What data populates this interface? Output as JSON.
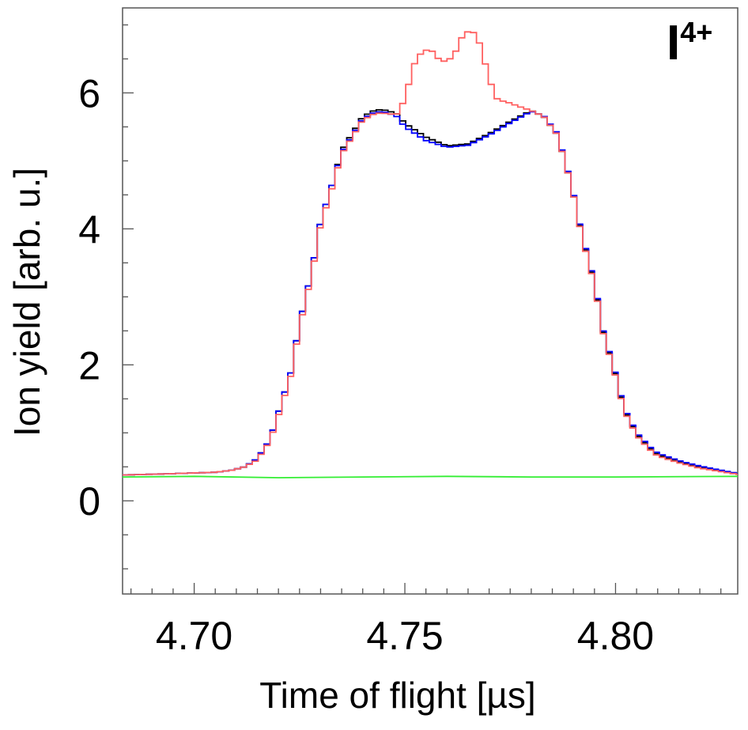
{
  "chart_data": {
    "type": "line",
    "xlabel": "Time of flight [µs]",
    "ylabel": "Ion yield [arb. u.]",
    "xlim": [
      4.683,
      4.829
    ],
    "ylim": [
      -1.37,
      7.25
    ],
    "x_ticks": [
      4.7,
      4.75,
      4.8
    ],
    "x_tick_labels": [
      "4.70",
      "4.75",
      "4.80"
    ],
    "y_ticks": [
      0,
      2,
      4,
      6
    ],
    "y_tick_labels": [
      "0",
      "2",
      "4",
      "6"
    ],
    "grid": false,
    "annotation": {
      "base": "I",
      "superscript": "4+"
    },
    "series": [
      {
        "color": "#000000",
        "style": "step",
        "x": [
          4.683,
          4.695,
          4.705,
          4.709,
          4.712,
          4.715,
          4.718,
          4.72,
          4.723,
          4.725,
          4.728,
          4.73,
          4.733,
          4.735,
          4.738,
          4.74,
          4.743,
          4.745,
          4.748,
          4.75,
          4.755,
          4.76,
          4.765,
          4.77,
          4.775,
          4.78,
          4.783,
          4.786,
          4.788,
          4.79,
          4.792,
          4.795,
          4.797,
          4.8,
          4.802,
          4.805,
          4.808,
          4.81,
          4.815,
          4.82,
          4.829
        ],
        "y": [
          0.38,
          0.4,
          0.42,
          0.45,
          0.5,
          0.62,
          0.9,
          1.3,
          1.9,
          2.6,
          3.4,
          4.1,
          4.7,
          5.15,
          5.45,
          5.65,
          5.75,
          5.75,
          5.7,
          5.55,
          5.35,
          5.22,
          5.25,
          5.4,
          5.58,
          5.74,
          5.65,
          5.4,
          5.0,
          4.5,
          3.9,
          3.2,
          2.5,
          1.85,
          1.35,
          0.98,
          0.78,
          0.68,
          0.58,
          0.5,
          0.4
        ]
      },
      {
        "color": "#0000ff",
        "style": "step",
        "x": [
          4.683,
          4.695,
          4.705,
          4.709,
          4.712,
          4.715,
          4.718,
          4.72,
          4.723,
          4.725,
          4.728,
          4.73,
          4.733,
          4.735,
          4.738,
          4.74,
          4.743,
          4.745,
          4.748,
          4.75,
          4.755,
          4.76,
          4.765,
          4.77,
          4.775,
          4.78,
          4.783,
          4.786,
          4.788,
          4.79,
          4.792,
          4.795,
          4.797,
          4.8,
          4.802,
          4.805,
          4.808,
          4.81,
          4.815,
          4.82,
          4.829
        ],
        "y": [
          0.38,
          0.4,
          0.42,
          0.45,
          0.5,
          0.62,
          0.9,
          1.3,
          1.9,
          2.6,
          3.4,
          4.1,
          4.7,
          5.12,
          5.42,
          5.62,
          5.72,
          5.72,
          5.66,
          5.5,
          5.3,
          5.2,
          5.23,
          5.38,
          5.56,
          5.73,
          5.66,
          5.42,
          5.02,
          4.52,
          3.92,
          3.22,
          2.52,
          1.87,
          1.37,
          1.0,
          0.8,
          0.7,
          0.59,
          0.51,
          0.4
        ]
      },
      {
        "color": "#ff6060",
        "style": "step",
        "x": [
          4.683,
          4.695,
          4.705,
          4.709,
          4.712,
          4.715,
          4.718,
          4.72,
          4.723,
          4.725,
          4.728,
          4.73,
          4.733,
          4.735,
          4.738,
          4.74,
          4.743,
          4.745,
          4.748,
          4.75,
          4.752,
          4.754,
          4.756,
          4.758,
          4.76,
          4.762,
          4.764,
          4.766,
          4.768,
          4.77,
          4.772,
          4.775,
          4.778,
          4.78,
          4.783,
          4.786,
          4.788,
          4.79,
          4.792,
          4.795,
          4.797,
          4.8,
          4.802,
          4.805,
          4.808,
          4.81,
          4.815,
          4.82,
          4.829
        ],
        "y": [
          0.38,
          0.4,
          0.42,
          0.45,
          0.5,
          0.6,
          0.88,
          1.25,
          1.85,
          2.55,
          3.35,
          4.05,
          4.65,
          5.1,
          5.4,
          5.6,
          5.7,
          5.7,
          5.68,
          5.9,
          6.4,
          6.6,
          6.65,
          6.5,
          6.45,
          6.6,
          6.88,
          6.92,
          6.7,
          6.2,
          5.9,
          5.85,
          5.78,
          5.74,
          5.65,
          5.4,
          5.0,
          4.5,
          3.88,
          3.18,
          2.48,
          1.83,
          1.33,
          0.96,
          0.76,
          0.66,
          0.56,
          0.48,
          0.39
        ]
      },
      {
        "color": "#33ee33",
        "style": "line",
        "x": [
          4.683,
          4.7,
          4.72,
          4.74,
          4.76,
          4.78,
          4.8,
          4.829
        ],
        "y": [
          0.35,
          0.36,
          0.34,
          0.35,
          0.36,
          0.35,
          0.35,
          0.36
        ]
      }
    ]
  }
}
